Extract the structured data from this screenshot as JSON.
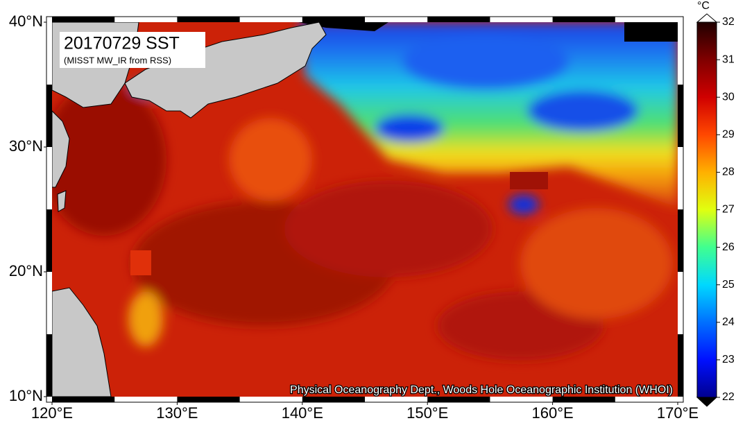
{
  "map": {
    "title": "20170729 SST",
    "subtitle": "(MISST MW_IR from RSS)",
    "credit": "Physical Oceanography Dept., Woods Hole Oceanographic Institution (WHOI)",
    "lon_lim": [
      120,
      170
    ],
    "lat_lim": [
      10,
      40
    ],
    "lon_ticks": [
      {
        "value": 120,
        "label": "120°E"
      },
      {
        "value": 130,
        "label": "130°E"
      },
      {
        "value": 140,
        "label": "140°E"
      },
      {
        "value": 150,
        "label": "150°E"
      },
      {
        "value": 160,
        "label": "160°E"
      },
      {
        "value": 170,
        "label": "170°E"
      }
    ],
    "lat_ticks": [
      {
        "value": 10,
        "label": "10°N"
      },
      {
        "value": 20,
        "label": "20°N"
      },
      {
        "value": 30,
        "label": "30°N"
      },
      {
        "value": 40,
        "label": "40°N"
      }
    ],
    "colorbar": {
      "unit": "°C",
      "lim": [
        22,
        32
      ],
      "ticks": [
        22,
        23,
        24,
        25,
        26,
        27,
        28,
        29,
        30,
        31,
        32
      ]
    }
  }
}
